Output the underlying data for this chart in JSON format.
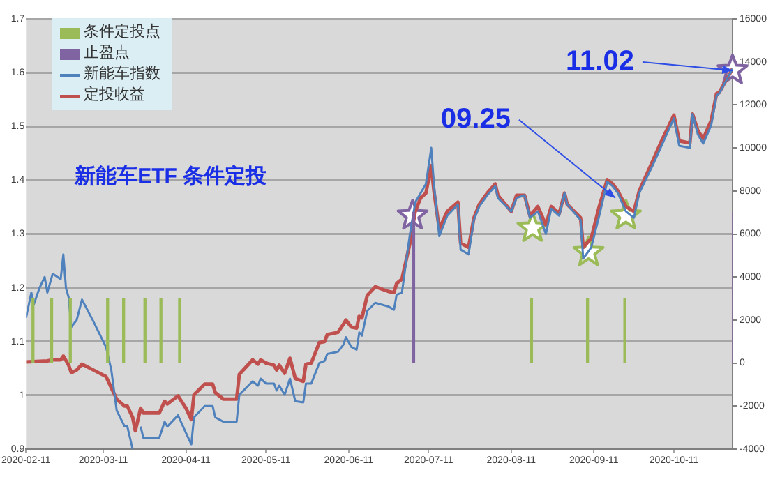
{
  "chart_data": {
    "type": "line",
    "annotations": [
      "新能车ETF 条件定投",
      {
        "text": "09.25",
        "x": "2020-09-19",
        "y": 1.367
      },
      {
        "text": "11.02",
        "x": "2020-11-02",
        "y": 1.604
      }
    ],
    "xlim": [
      "2020-02-11",
      "2020-11-02"
    ],
    "xticks": [
      "2020-02-11",
      "2020-03-11",
      "2020-04-11",
      "2020-05-11",
      "2020-06-11",
      "2020-07-11",
      "2020-08-11",
      "2020-09-11",
      "2020-10-11"
    ],
    "ylim": [
      0.9,
      1.7
    ],
    "yticks": [
      0.9,
      1,
      1.1,
      1.2,
      1.3,
      1.4,
      1.5,
      1.6,
      1.7
    ],
    "y2lim": [
      -4000,
      16000
    ],
    "y2ticks": [
      -4000,
      -2000,
      0,
      2000,
      4000,
      6000,
      8000,
      10000,
      12000,
      14000,
      16000
    ],
    "grid": "y",
    "legend": "top left",
    "series": [
      {
        "name": "条件定投点",
        "type": "bar",
        "axis": "y2",
        "color": "#9bbb59",
        "x": [
          "2020-02-14",
          "2020-02-21",
          "2020-02-28",
          "2020-03-13",
          "2020-03-19",
          "2020-03-27",
          "2020-04-02",
          "2020-04-09",
          "2020-08-19",
          "2020-09-09",
          "2020-09-23"
        ],
        "values": [
          3000,
          3000,
          3000,
          3000,
          3000,
          3000,
          3000,
          3000,
          3000,
          3000,
          3000
        ]
      },
      {
        "name": "止盈点",
        "type": "bar",
        "axis": "y2",
        "color": "#8064a2",
        "x": [
          "2020-07-05",
          "2020-11-02"
        ],
        "values": [
          7000,
          7000
        ]
      },
      {
        "name": "新能车指数",
        "color": "#4f81bd",
        "x": [
          "2020-02-11",
          "2020-02-13",
          "2020-02-14",
          "2020-02-16",
          "2020-02-18",
          "2020-02-19",
          "2020-02-21",
          "2020-02-24",
          "2020-02-25",
          "2020-02-26",
          "2020-02-27",
          "2020-02-28",
          "2020-03-01",
          "2020-03-03",
          "2020-03-07",
          "2020-03-12",
          "2020-03-14",
          "2020-03-16",
          "2020-03-19",
          "2020-03-20",
          "2020-03-22",
          "2020-03-24",
          "2020-03-25",
          "2020-03-26",
          "2020-04-01",
          "2020-04-03",
          "2020-04-04",
          "2020-04-08",
          "2020-04-11",
          "2020-04-13",
          "2020-04-14",
          "2020-04-18",
          "2020-04-21",
          "2020-04-22",
          "2020-04-25",
          "2020-04-30",
          "2020-05-01",
          "2020-05-06",
          "2020-05-08",
          "2020-05-09",
          "2020-05-11",
          "2020-05-14",
          "2020-05-15",
          "2020-05-16",
          "2020-05-18",
          "2020-05-20",
          "2020-05-22",
          "2020-05-25",
          "2020-05-26",
          "2020-05-28",
          "2020-05-31",
          "2020-06-02",
          "2020-06-03",
          "2020-06-07",
          "2020-06-09",
          "2020-06-10",
          "2020-06-12",
          "2020-06-14",
          "2020-06-15",
          "2020-06-16",
          "2020-06-18",
          "2020-06-21",
          "2020-06-26",
          "2020-06-28",
          "2020-06-29",
          "2020-07-01",
          "2020-07-04",
          "2020-07-06",
          "2020-07-08",
          "2020-07-10",
          "2020-07-12",
          "2020-07-13",
          "2020-07-15",
          "2020-07-18",
          "2020-07-22",
          "2020-07-23",
          "2020-07-26",
          "2020-07-28",
          "2020-07-30",
          "2020-08-02",
          "2020-08-05",
          "2020-08-06",
          "2020-08-11",
          "2020-08-13",
          "2020-08-16",
          "2020-08-18",
          "2020-08-21",
          "2020-08-24",
          "2020-08-26",
          "2020-08-29",
          "2020-08-31",
          "2020-09-01",
          "2020-09-06",
          "2020-09-07",
          "2020-09-10",
          "2020-09-13",
          "2020-09-16",
          "2020-09-18",
          "2020-09-20",
          "2020-09-23",
          "2020-09-26",
          "2020-09-28",
          "2020-10-03",
          "2020-10-06",
          "2020-10-11",
          "2020-10-13",
          "2020-10-17",
          "2020-10-18",
          "2020-10-20",
          "2020-10-22",
          "2020-10-25",
          "2020-10-27",
          "2020-10-28",
          "2020-11-02"
        ],
        "values": [
          1.144,
          1.191,
          1.17,
          1.199,
          1.22,
          1.191,
          1.226,
          1.216,
          1.262,
          1.199,
          1.182,
          1.127,
          1.14,
          1.178,
          1.14,
          1.09,
          1.047,
          0.972,
          0.942,
          0.942,
          0.9,
          null,
          0.942,
          0.921,
          0.921,
          0.951,
          0.942,
          0.963,
          0.93,
          0.909,
          0.959,
          0.98,
          0.98,
          0.959,
          0.951,
          0.951,
          1.001,
          1.026,
          1.018,
          1.031,
          1.022,
          1.022,
          1.009,
          1.018,
          1.001,
          1.031,
          0.989,
          0.987,
          1.022,
          1.022,
          1.06,
          1.064,
          1.077,
          1.081,
          1.094,
          1.108,
          1.09,
          1.085,
          1.117,
          1.111,
          1.157,
          1.172,
          1.165,
          1.159,
          1.187,
          1.191,
          1.3,
          1.359,
          1.376,
          1.393,
          1.46,
          1.393,
          1.296,
          1.334,
          1.355,
          1.271,
          1.262,
          1.326,
          1.351,
          1.372,
          1.389,
          1.367,
          1.342,
          1.367,
          1.372,
          1.33,
          1.342,
          1.3,
          1.347,
          1.334,
          1.376,
          1.355,
          1.326,
          1.254,
          1.275,
          1.334,
          1.397,
          1.389,
          1.376,
          1.342,
          1.33,
          1.376,
          1.427,
          1.46,
          1.515,
          1.464,
          1.46,
          1.523,
          1.485,
          1.468,
          1.502,
          1.557,
          1.561,
          1.607
        ]
      },
      {
        "name": "定投收益",
        "color": "#c0504d",
        "x": [
          "2020-02-11",
          "2020-02-19",
          "2020-02-21",
          "2020-02-24",
          "2020-02-25",
          "2020-02-27",
          "2020-02-28",
          "2020-03-01",
          "2020-03-03",
          "2020-03-12",
          "2020-03-14",
          "2020-03-16",
          "2020-03-19",
          "2020-03-20",
          "2020-03-22",
          "2020-03-23",
          "2020-03-25",
          "2020-03-26",
          "2020-04-01",
          "2020-04-03",
          "2020-04-04",
          "2020-04-08",
          "2020-04-11",
          "2020-04-13",
          "2020-04-14",
          "2020-04-18",
          "2020-04-21",
          "2020-04-22",
          "2020-04-25",
          "2020-04-30",
          "2020-05-01",
          "2020-05-06",
          "2020-05-08",
          "2020-05-09",
          "2020-05-11",
          "2020-05-14",
          "2020-05-15",
          "2020-05-16",
          "2020-05-18",
          "2020-05-20",
          "2020-05-22",
          "2020-05-25",
          "2020-05-26",
          "2020-05-28",
          "2020-05-31",
          "2020-06-02",
          "2020-06-03",
          "2020-06-07",
          "2020-06-09",
          "2020-06-10",
          "2020-06-12",
          "2020-06-14",
          "2020-06-15",
          "2020-06-16",
          "2020-06-18",
          "2020-06-21",
          "2020-06-26",
          "2020-06-28",
          "2020-06-29",
          "2020-07-01",
          "2020-07-04",
          "2020-07-06",
          "2020-07-08",
          "2020-07-10",
          "2020-07-12",
          "2020-07-13",
          "2020-07-15",
          "2020-07-18",
          "2020-07-22",
          "2020-07-23",
          "2020-07-26",
          "2020-07-28",
          "2020-07-30",
          "2020-08-02",
          "2020-08-05",
          "2020-08-06",
          "2020-08-11",
          "2020-08-13",
          "2020-08-16",
          "2020-08-18",
          "2020-08-21",
          "2020-08-24",
          "2020-08-26",
          "2020-08-29",
          "2020-08-31",
          "2020-09-01",
          "2020-09-06",
          "2020-09-07",
          "2020-09-10",
          "2020-09-13",
          "2020-09-16",
          "2020-09-18",
          "2020-09-20",
          "2020-09-23",
          "2020-09-26",
          "2020-09-28",
          "2020-10-03",
          "2020-10-06",
          "2020-10-11",
          "2020-10-13",
          "2020-10-17",
          "2020-10-18",
          "2020-10-20",
          "2020-10-22",
          "2020-10-25",
          "2020-10-27",
          "2020-10-28",
          "2020-11-02"
        ],
        "values": [
          1.062,
          1.064,
          1.066,
          1.066,
          1.073,
          1.056,
          1.042,
          1.047,
          1.058,
          1.035,
          1.014,
          0.993,
          0.98,
          0.98,
          0.959,
          0.934,
          0.976,
          0.967,
          0.967,
          0.989,
          0.984,
          0.999,
          0.976,
          0.955,
          1.001,
          1.021,
          1.021,
          1.005,
          0.993,
          0.993,
          1.039,
          1.066,
          1.058,
          1.066,
          1.06,
          1.056,
          1.047,
          1.056,
          1.041,
          1.069,
          1.031,
          1.026,
          1.058,
          1.06,
          1.098,
          1.1,
          1.113,
          1.117,
          1.132,
          1.14,
          1.127,
          1.125,
          1.148,
          1.144,
          1.186,
          1.202,
          1.193,
          1.191,
          1.208,
          1.216,
          1.283,
          1.342,
          1.367,
          1.376,
          1.427,
          1.38,
          1.309,
          1.342,
          1.359,
          1.283,
          1.275,
          1.33,
          1.355,
          1.376,
          1.393,
          1.372,
          1.342,
          1.372,
          1.372,
          1.334,
          1.351,
          1.317,
          1.351,
          1.338,
          1.376,
          1.355,
          1.33,
          1.275,
          1.292,
          1.351,
          1.401,
          1.393,
          1.38,
          1.351,
          1.342,
          1.38,
          1.435,
          1.469,
          1.521,
          1.473,
          1.469,
          1.523,
          1.492,
          1.477,
          1.511,
          1.561,
          1.563,
          1.607
        ]
      },
      {
        "type": "scatter",
        "marker": "star",
        "colors": [
          "#8064a2",
          "#9bbb59",
          "#9bbb59",
          "#9bbb59",
          "#8064a2"
        ],
        "x": [
          "2020-07-05",
          "2020-08-19",
          "2020-09-09",
          "2020-09-23",
          "2020-11-02"
        ],
        "values": [
          1.334,
          1.311,
          1.266,
          1.334,
          1.604
        ]
      }
    ]
  }
}
